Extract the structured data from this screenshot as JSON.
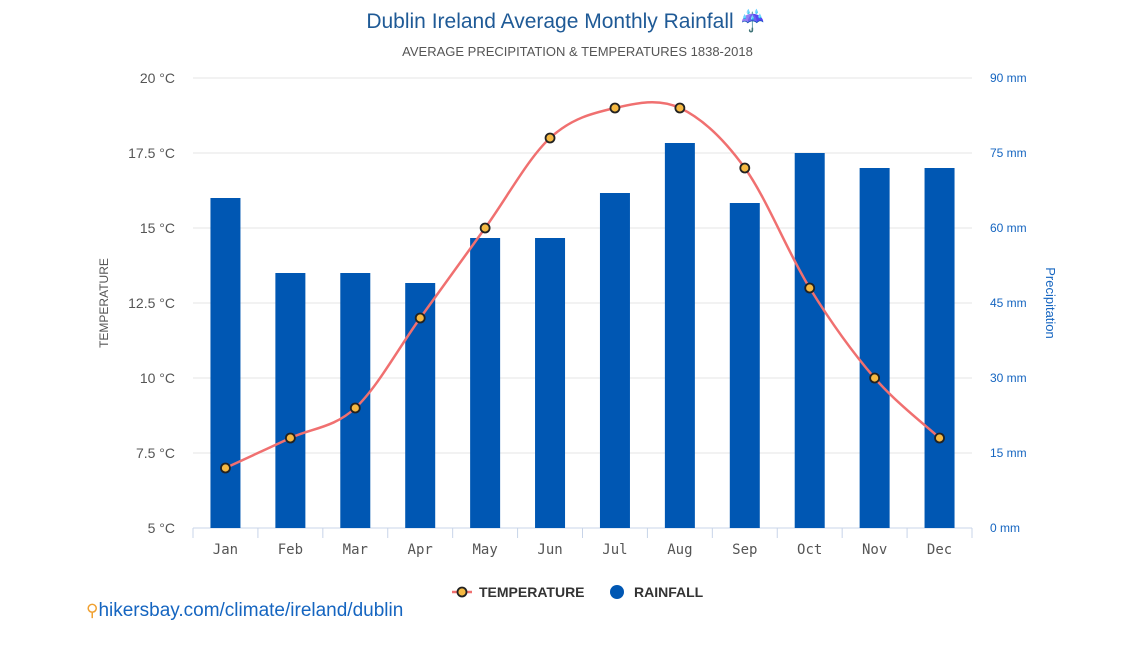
{
  "title": "Dublin Ireland Average Monthly Rainfall",
  "title_icon": "umbrella-rain-icon",
  "subtitle": "AVERAGE PRECIPITATION & TEMPERATURES 1838-2018",
  "source": "hikersbay.com/climate/ireland/dublin",
  "chart_data": {
    "type": "bar+line",
    "categories": [
      "Jan",
      "Feb",
      "Mar",
      "Apr",
      "May",
      "Jun",
      "Jul",
      "Aug",
      "Sep",
      "Oct",
      "Nov",
      "Dec"
    ],
    "series": [
      {
        "name": "TEMPERATURE",
        "type": "line",
        "axis": "left",
        "unit": "°C",
        "color": "#f07070",
        "marker_color": "#f5b942",
        "values": [
          7,
          8,
          9,
          12,
          15,
          18,
          19,
          19,
          17,
          13,
          10,
          8
        ]
      },
      {
        "name": "RAINFALL",
        "type": "bar",
        "axis": "right",
        "unit": "mm",
        "color": "#0057b3",
        "values": [
          66,
          51,
          51,
          49,
          58,
          58,
          67,
          77,
          65,
          75,
          72,
          72
        ]
      }
    ],
    "ylabel_left": "TEMPERATURE",
    "ylabel_right": "Precipitation",
    "ylim_left": [
      5,
      20
    ],
    "ylim_right": [
      0,
      90
    ],
    "yticks_left": [
      "5 °C",
      "7.5 °C",
      "10 °C",
      "12.5 °C",
      "15 °C",
      "17.5 °C",
      "20 °C"
    ],
    "yticks_right": [
      "0 mm",
      "15 mm",
      "30 mm",
      "45 mm",
      "60 mm",
      "75 mm",
      "90 mm"
    ],
    "grid": true,
    "legend": "bottom"
  }
}
